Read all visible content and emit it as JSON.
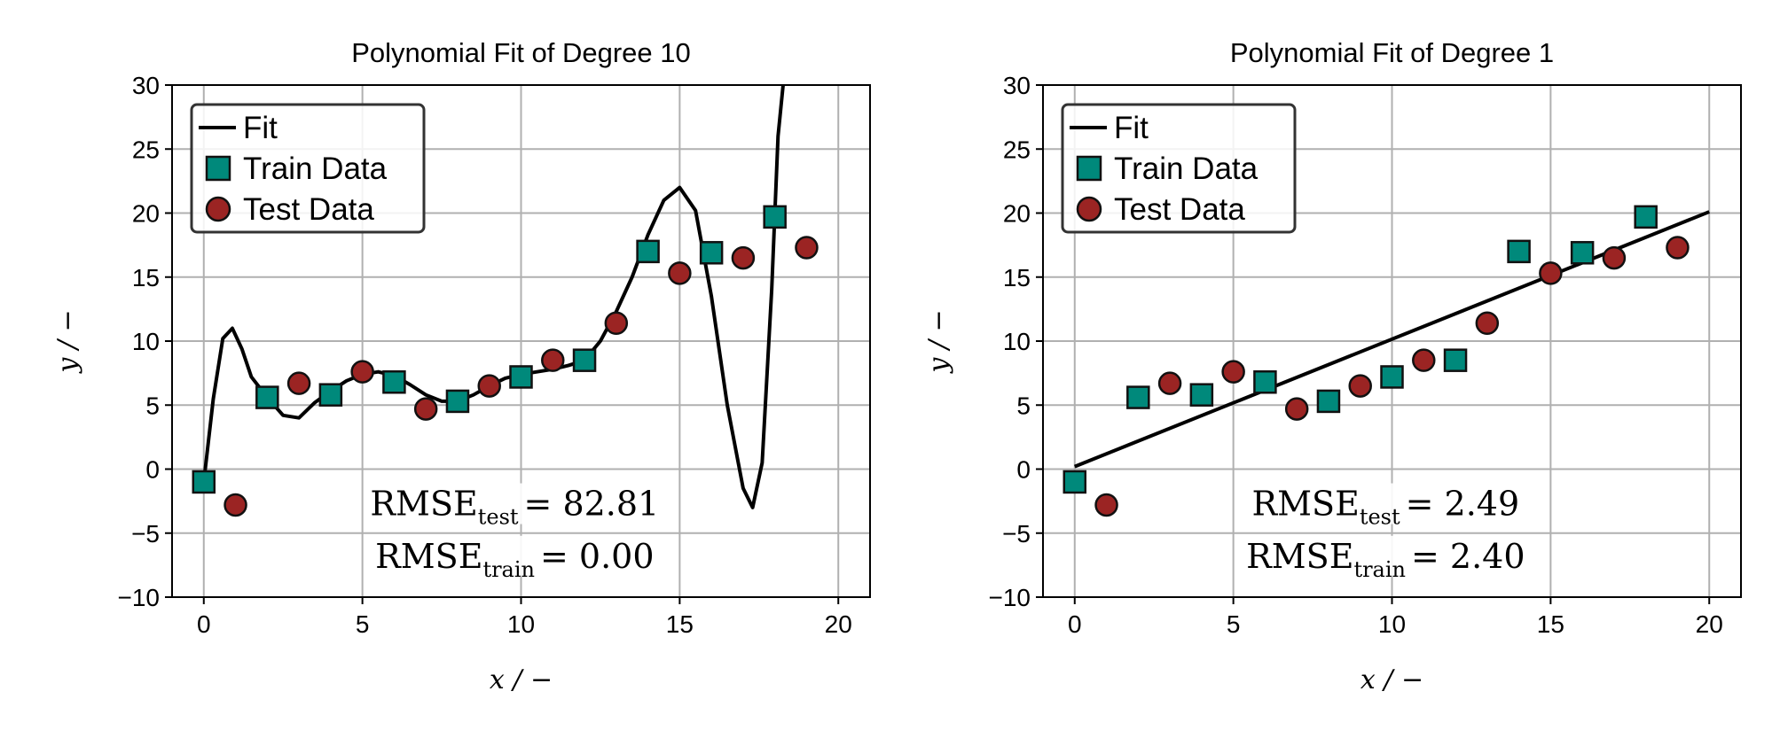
{
  "chart_data": [
    {
      "type": "scatter",
      "title": "Polynomial Fit of Degree 10",
      "xlabel": "x / −",
      "ylabel": "y / −",
      "xlim": [
        -1,
        21
      ],
      "ylim": [
        -10,
        30
      ],
      "xticks": [
        "0",
        "5",
        "10",
        "15",
        "20"
      ],
      "yticks": [
        "−10",
        "−5",
        "0",
        "5",
        "10",
        "15",
        "20",
        "25",
        "30"
      ],
      "grid": true,
      "legend_placement": "top-left",
      "legend": [
        "Fit",
        "Train Data",
        "Test Data"
      ],
      "series": [
        {
          "name": "Train Data",
          "marker": "square",
          "color": "#00897b",
          "x": [
            0,
            2,
            4,
            6,
            8,
            10,
            12,
            14,
            16,
            18
          ],
          "y": [
            -1.0,
            5.6,
            5.8,
            6.8,
            5.3,
            7.2,
            8.5,
            17.0,
            16.9,
            19.7
          ]
        },
        {
          "name": "Test Data",
          "marker": "circle",
          "color": "#9b2423",
          "x": [
            1,
            3,
            5,
            7,
            9,
            11,
            13,
            15,
            17,
            19
          ],
          "y": [
            -2.8,
            6.7,
            7.6,
            4.7,
            6.5,
            8.5,
            11.4,
            15.3,
            16.5,
            17.3
          ]
        },
        {
          "name": "Fit",
          "kind": "line",
          "color": "#000000",
          "x": [
            0,
            0.3,
            0.6,
            0.9,
            1.2,
            1.5,
            2,
            2.5,
            3,
            3.5,
            4,
            4.5,
            5,
            5.5,
            6,
            6.5,
            7,
            7.5,
            8,
            8.5,
            9,
            9.5,
            10,
            10.5,
            11,
            11.5,
            12,
            12.5,
            13,
            13.5,
            14,
            14.5,
            15,
            15.5,
            16,
            16.5,
            17,
            17.3,
            17.6,
            17.9,
            18.1,
            18.3
          ],
          "y": [
            -1.0,
            5.5,
            10.2,
            11.0,
            9.4,
            7.2,
            5.6,
            4.2,
            4.0,
            5.2,
            6.1,
            6.9,
            7.4,
            7.6,
            7.3,
            6.6,
            5.8,
            5.3,
            5.3,
            5.8,
            6.5,
            7.1,
            7.4,
            7.6,
            7.8,
            8.1,
            8.5,
            10.0,
            12.3,
            15.0,
            18.3,
            21.0,
            22.0,
            20.2,
            13.5,
            5.0,
            -1.5,
            -3.0,
            0.5,
            14.0,
            26.0,
            31.0
          ]
        }
      ],
      "annotations": {
        "rmse_test_label": "RMSE",
        "rmse_test_sub": "test",
        "rmse_test_value": "= 82.81",
        "rmse_train_label": "RMSE",
        "rmse_train_sub": "train",
        "rmse_train_value": "= 0.00"
      }
    },
    {
      "type": "scatter",
      "title": "Polynomial Fit of Degree 1",
      "xlabel": "x / −",
      "ylabel": "y / −",
      "xlim": [
        -1,
        21
      ],
      "ylim": [
        -10,
        30
      ],
      "xticks": [
        "0",
        "5",
        "10",
        "15",
        "20"
      ],
      "yticks": [
        "−10",
        "−5",
        "0",
        "5",
        "10",
        "15",
        "20",
        "25",
        "30"
      ],
      "grid": true,
      "legend_placement": "top-left",
      "legend": [
        "Fit",
        "Train Data",
        "Test Data"
      ],
      "series": [
        {
          "name": "Train Data",
          "marker": "square",
          "color": "#00897b",
          "x": [
            0,
            2,
            4,
            6,
            8,
            10,
            12,
            14,
            16,
            18
          ],
          "y": [
            -1.0,
            5.6,
            5.8,
            6.8,
            5.3,
            7.2,
            8.5,
            17.0,
            16.9,
            19.7
          ]
        },
        {
          "name": "Test Data",
          "marker": "circle",
          "color": "#9b2423",
          "x": [
            1,
            3,
            5,
            7,
            9,
            11,
            13,
            15,
            17,
            19
          ],
          "y": [
            -2.8,
            6.7,
            7.6,
            4.7,
            6.5,
            8.5,
            11.4,
            15.3,
            16.5,
            17.3
          ]
        },
        {
          "name": "Fit",
          "kind": "line",
          "color": "#000000",
          "x": [
            0,
            20
          ],
          "y": [
            0.2,
            20.1
          ]
        }
      ],
      "annotations": {
        "rmse_test_label": "RMSE",
        "rmse_test_sub": "test",
        "rmse_test_value": "= 2.49",
        "rmse_train_label": "RMSE",
        "rmse_train_sub": "train",
        "rmse_train_value": "= 2.40"
      }
    }
  ]
}
